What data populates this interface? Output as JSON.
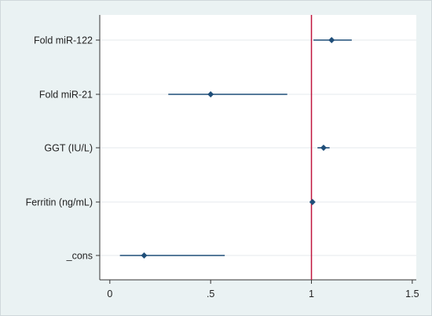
{
  "chart_data": {
    "type": "scatter",
    "subtype": "coefficient-plot",
    "title": "",
    "xlabel": "",
    "ylabel": "",
    "xlim": [
      -0.05,
      1.52
    ],
    "x_ticks": [
      0,
      0.5,
      1,
      1.5
    ],
    "x_tick_labels": [
      "0",
      ".5",
      "1",
      "1.5"
    ],
    "reference_line": {
      "x": 1,
      "color": "#c0143c"
    },
    "marker_color": "#1f4e79",
    "background": "#eaf2f3",
    "plot_background": "#ffffff",
    "grid": true,
    "categories": [
      "Fold miR-122",
      "Fold miR-21",
      "GGT (IU/L)",
      "Ferritin (ng/mL)",
      "_cons"
    ],
    "points": [
      {
        "label": "Fold miR-122",
        "estimate": 1.1,
        "ci_low": 1.01,
        "ci_high": 1.2
      },
      {
        "label": "Fold miR-21",
        "estimate": 0.5,
        "ci_low": 0.29,
        "ci_high": 0.88
      },
      {
        "label": "GGT (IU/L)",
        "estimate": 1.06,
        "ci_low": 1.03,
        "ci_high": 1.09
      },
      {
        "label": "Ferritin (ng/mL)",
        "estimate": 1.005,
        "ci_low": 1.0,
        "ci_high": 1.01
      },
      {
        "label": "_cons",
        "estimate": 0.17,
        "ci_low": 0.05,
        "ci_high": 0.57
      }
    ]
  }
}
